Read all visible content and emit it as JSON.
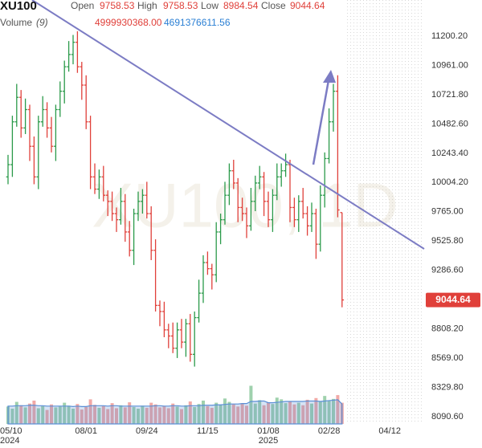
{
  "chart_data": {
    "type": "ohlc",
    "title": "XU100",
    "watermark": "XU100, 1D",
    "header": {
      "open": "Open",
      "high": "High",
      "low": "Low",
      "close": "Close",
      "volume": "Volume",
      "volume_period": "(9)",
      "volume_value": "4999930368.00",
      "volume_ma_value": "4691376611.56"
    },
    "categories": [
      null,
      null,
      null,
      null,
      "05/10",
      null,
      null,
      null,
      null,
      null,
      null,
      null,
      null,
      null,
      null,
      null,
      null,
      null,
      "08/01",
      null,
      null,
      null,
      null,
      null,
      null,
      null,
      null,
      null,
      null,
      null,
      null,
      null,
      "09/24",
      null,
      null,
      null,
      null,
      null,
      null,
      null,
      null,
      null,
      null,
      null,
      null,
      null,
      "11/15",
      null,
      null,
      null,
      null,
      null,
      null,
      null,
      null,
      null,
      null,
      null,
      null,
      null,
      "01/08",
      null,
      null,
      null,
      null,
      null,
      null,
      null,
      null,
      null,
      null,
      null,
      null,
      null,
      "02/28",
      null,
      null,
      null,
      null,
      null,
      null,
      null,
      null,
      null,
      null,
      null,
      null,
      null,
      "04/12"
    ],
    "years": [
      "2024",
      "2025"
    ],
    "open": [
      10050,
      10150,
      10500,
      10700,
      10450,
      10600,
      10300,
      10050,
      10500,
      10600,
      10450,
      10300,
      10600,
      10750,
      10950,
      11050,
      11150,
      10950,
      10800,
      10500,
      10050,
      9950,
      10050,
      9900,
      9850,
      9750,
      9700,
      9850,
      9600,
      9450,
      9750,
      9850,
      9900,
      9750,
      9450,
      9000,
      8950,
      8800,
      8750,
      8650,
      8800,
      8700,
      8850,
      8600,
      8900,
      9100,
      9350,
      9300,
      9250,
      9600,
      9700,
      9900,
      10100,
      10000,
      9800,
      9750,
      9650,
      9850,
      10000,
      10050,
      9850,
      9700,
      9900,
      10050,
      10100,
      10150,
      9800,
      9700,
      9850,
      9750,
      9650,
      9750,
      9500,
      9900,
      10200,
      10500,
      10750,
      9758.53,
      null,
      null,
      null,
      null,
      null,
      null,
      null,
      null,
      null,
      null,
      null
    ],
    "high": [
      10230,
      10550,
      10810,
      10760,
      10690,
      10640,
      10380,
      10550,
      10710,
      10660,
      10540,
      10640,
      10830,
      11000,
      11160,
      11210,
      11240,
      10990,
      10880,
      10550,
      10160,
      10110,
      10140,
      9940,
      9930,
      9800,
      9960,
      9910,
      9690,
      9790,
      9930,
      9950,
      10010,
      9810,
      9540,
      9040,
      9030,
      8850,
      8860,
      8860,
      8890,
      8890,
      8930,
      8950,
      9210,
      9410,
      9440,
      9340,
      9680,
      9750,
      10010,
      10160,
      10190,
      10040,
      9880,
      9800,
      9960,
      10060,
      10140,
      10090,
      9930,
      9950,
      10160,
      10160,
      10240,
      10190,
      9880,
      9900,
      9960,
      9810,
      9840,
      9790,
      9980,
      10250,
      10610,
      10810,
      10880,
      9758.53,
      null,
      null,
      null,
      null,
      null,
      null,
      null,
      null,
      null,
      null,
      null
    ],
    "low": [
      9990,
      10050,
      10460,
      10370,
      10400,
      10180,
      9990,
      9950,
      10460,
      10370,
      10250,
      10180,
      10540,
      10650,
      10910,
      10970,
      10900,
      10680,
      10440,
      9950,
      9910,
      9870,
      9850,
      9730,
      9690,
      9600,
      9660,
      9520,
      9400,
      9330,
      9690,
      9750,
      9710,
      9370,
      8950,
      8830,
      8740,
      8650,
      8610,
      8570,
      8650,
      8580,
      8540,
      8500,
      8860,
      9020,
      9250,
      9130,
      9190,
      9500,
      9660,
      9820,
      9950,
      9680,
      9690,
      9550,
      9610,
      9770,
      9950,
      9730,
      9640,
      9600,
      9860,
      9970,
      10050,
      9680,
      9640,
      9600,
      9710,
      9570,
      9600,
      9380,
      9440,
      9800,
      10160,
      10420,
      9720,
      8984.54,
      null,
      null,
      null,
      null,
      null,
      null,
      null,
      null,
      null,
      null,
      null
    ],
    "close": [
      10150,
      10500,
      10700,
      10450,
      10600,
      10300,
      10050,
      10500,
      10600,
      10450,
      10300,
      10600,
      10750,
      10950,
      11050,
      11150,
      10950,
      10800,
      10500,
      10050,
      9950,
      10050,
      9900,
      9850,
      9750,
      9700,
      9850,
      9600,
      9450,
      9750,
      9850,
      9900,
      9750,
      9450,
      9000,
      8950,
      8800,
      8750,
      8650,
      8800,
      8700,
      8850,
      8600,
      8900,
      9100,
      9350,
      9300,
      9250,
      9600,
      9700,
      9900,
      10100,
      10000,
      9800,
      9750,
      9650,
      9850,
      10000,
      10050,
      9850,
      9700,
      9900,
      10050,
      10100,
      10150,
      9800,
      9700,
      9850,
      9750,
      9650,
      9750,
      9500,
      9900,
      10200,
      10500,
      10750,
      9780,
      9044.64,
      null,
      null,
      null,
      null,
      null,
      null,
      null,
      null,
      null,
      null,
      null
    ],
    "up_color": "#2b9a4a",
    "down_color": "#e0403a",
    "ylim": [
      8031.6,
      11495.4
    ],
    "yticks": [
      {
        "value": 11200.2,
        "label": "11200.20"
      },
      {
        "value": 10961,
        "label": "10961.00"
      },
      {
        "value": 10721.8,
        "label": "10721.80"
      },
      {
        "value": 10482.6,
        "label": "10482.60"
      },
      {
        "value": 10243.4,
        "label": "10243.40"
      },
      {
        "value": 10004.2,
        "label": "10004.20"
      },
      {
        "value": 9765,
        "label": "9765.00"
      },
      {
        "value": 9525.8,
        "label": "9525.80"
      },
      {
        "value": 9286.6,
        "label": "9286.60"
      },
      {
        "value": 8808.2,
        "label": "8808.20"
      },
      {
        "value": 8569,
        "label": "8569.00"
      },
      {
        "value": 8329.8,
        "label": "8329.80"
      },
      {
        "value": 8090.6,
        "label": "8090.60"
      }
    ],
    "y2lim": [
      0,
      100000000000
    ],
    "volume": {
      "axis": "y2",
      "values": [
        4100000000.0,
        3600000000.0,
        5200000000.0,
        4400000000.0,
        3900000000.0,
        4800000000.0,
        5500000000.0,
        3700000000.0,
        4200000000.0,
        3300000000.0,
        4600000000.0,
        3900000000.0,
        4100000000.0,
        5000000000.0,
        4300000000.0,
        3600000000.0,
        4700000000.0,
        3400000000.0,
        4000000000.0,
        5800000000.0,
        4500000000.0,
        3800000000.0,
        4200000000.0,
        3500000000.0,
        4900000000.0,
        3700000000.0,
        4400000000.0,
        3900000000.0,
        5100000000.0,
        4000000000.0,
        3600000000.0,
        4300000000.0,
        3800000000.0,
        5000000000.0,
        4600000000.0,
        3900000000.0,
        4200000000.0,
        3700000000.0,
        4800000000.0,
        4100000000.0,
        3500000000.0,
        4400000000.0,
        5300000000.0,
        4000000000.0,
        4700000000.0,
        5500000000.0,
        4200000000.0,
        3800000000.0,
        5000000000.0,
        4500000000.0,
        6000000000.0,
        5200000000.0,
        4600000000.0,
        4100000000.0,
        4900000000.0,
        4300000000.0,
        9000000000.0,
        4800000000.0,
        5600000000.0,
        4400000000.0,
        5100000000.0,
        4700000000.0,
        6200000000.0,
        5800000000.0,
        4900000000.0,
        5300000000.0,
        4600000000.0,
        5000000000.0,
        4400000000.0,
        5700000000.0,
        4800000000.0,
        6100000000.0,
        5200000000.0,
        6600000000.0,
        5500000000.0,
        5900000000.0,
        6800000000.0,
        4999930368,
        null,
        null,
        null,
        null,
        null,
        null,
        null,
        null,
        null,
        null,
        null
      ]
    },
    "volume_ma": {
      "axis": "y2",
      "color": "#5b8fd6",
      "values": [
        4200000000.0,
        4200000000.0,
        4300000000.0,
        4300000000.0,
        4300000000.0,
        4400000000.0,
        4400000000.0,
        4300000000.0,
        4300000000.0,
        4200000000.0,
        4200000000.0,
        4200000000.0,
        4200000000.0,
        4200000000.0,
        4200000000.0,
        4100000000.0,
        4200000000.0,
        4100000000.0,
        4100000000.0,
        4300000000.0,
        4300000000.0,
        4300000000.0,
        4300000000.0,
        4200000000.0,
        4300000000.0,
        4300000000.0,
        4200000000.0,
        4200000000.0,
        4200000000.0,
        4200000000.0,
        4200000000.0,
        4200000000.0,
        4200000000.0,
        4200000000.0,
        4300000000.0,
        4300000000.0,
        4200000000.0,
        4200000000.0,
        4300000000.0,
        4300000000.0,
        4200000000.0,
        4200000000.0,
        4300000000.0,
        4300000000.0,
        4300000000.0,
        4400000000.0,
        4400000000.0,
        4400000000.0,
        4500000000.0,
        4500000000.0,
        4600000000.0,
        4700000000.0,
        4700000000.0,
        4700000000.0,
        4800000000.0,
        4800000000.0,
        5300000000.0,
        5300000000.0,
        5400000000.0,
        5400000000.0,
        5000000000.0,
        5000000000.0,
        5100000000.0,
        5200000000.0,
        5300000000.0,
        5300000000.0,
        5300000000.0,
        5300000000.0,
        5300000000.0,
        5400000000.0,
        5400000000.0,
        5400000000.0,
        5300000000.0,
        5400000000.0,
        5500000000.0,
        5600000000.0,
        5700000000.0,
        4691376611.56,
        null,
        null,
        null,
        null,
        null,
        null,
        null,
        null,
        null,
        null,
        null
      ]
    }
  }
}
